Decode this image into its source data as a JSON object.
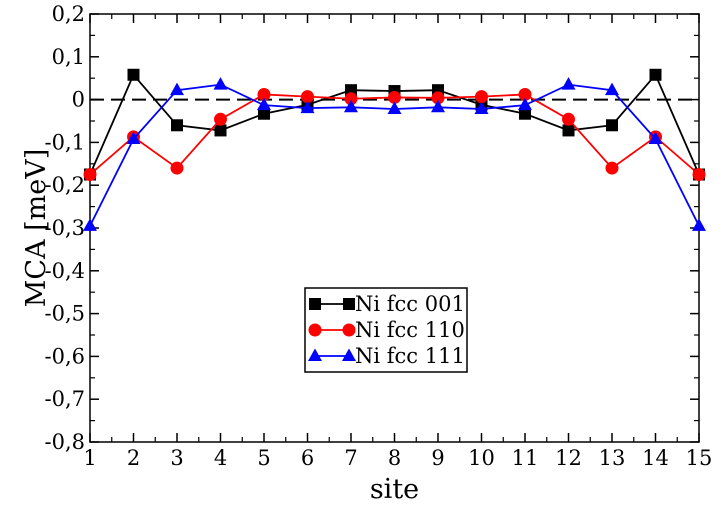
{
  "chart_data": {
    "type": "line",
    "xlabel": "site",
    "ylabel": "MCA [meV]",
    "xlim": [
      1,
      15
    ],
    "ylim": [
      -0.8,
      0.2
    ],
    "x_ticks": [
      "1",
      "2",
      "3",
      "4",
      "5",
      "6",
      "7",
      "8",
      "9",
      "10",
      "11",
      "12",
      "13",
      "14",
      "15"
    ],
    "y_ticks": [
      {
        "value": 0.2,
        "label": "0,2"
      },
      {
        "value": 0.1,
        "label": "0,1"
      },
      {
        "value": 0.0,
        "label": "0"
      },
      {
        "value": -0.1,
        "label": "-0,1"
      },
      {
        "value": -0.2,
        "label": "-0,2"
      },
      {
        "value": -0.3,
        "label": "-0,3"
      },
      {
        "value": -0.4,
        "label": "-0,4"
      },
      {
        "value": -0.5,
        "label": "-0,5"
      },
      {
        "value": -0.6,
        "label": "-0,6"
      },
      {
        "value": -0.7,
        "label": "-0,7"
      },
      {
        "value": -0.8,
        "label": "-0,8"
      }
    ],
    "reference_line": {
      "y": 0,
      "style": "dashed"
    },
    "legend_position": "lower-center",
    "x": [
      1,
      2,
      3,
      4,
      5,
      6,
      7,
      8,
      9,
      10,
      11,
      12,
      13,
      14,
      15
    ],
    "series": [
      {
        "name": "Ni fcc 001",
        "color": "#000000",
        "marker": "square",
        "values": [
          -0.175,
          0.058,
          -0.06,
          -0.072,
          -0.033,
          -0.012,
          0.022,
          0.02,
          0.022,
          -0.012,
          -0.033,
          -0.072,
          -0.06,
          0.058,
          -0.175
        ]
      },
      {
        "name": "Ni fcc 110",
        "color": "#ff0000",
        "marker": "circle",
        "values": [
          -0.175,
          -0.087,
          -0.16,
          -0.046,
          0.012,
          0.007,
          0.002,
          0.005,
          0.004,
          0.007,
          0.012,
          -0.046,
          -0.16,
          -0.087,
          -0.175
        ]
      },
      {
        "name": "Ni fcc 111",
        "color": "#0000ff",
        "marker": "triangle",
        "values": [
          -0.295,
          -0.092,
          0.022,
          0.035,
          -0.013,
          -0.02,
          -0.018,
          -0.022,
          -0.018,
          -0.022,
          -0.013,
          0.035,
          0.022,
          -0.092,
          -0.295
        ]
      }
    ]
  }
}
